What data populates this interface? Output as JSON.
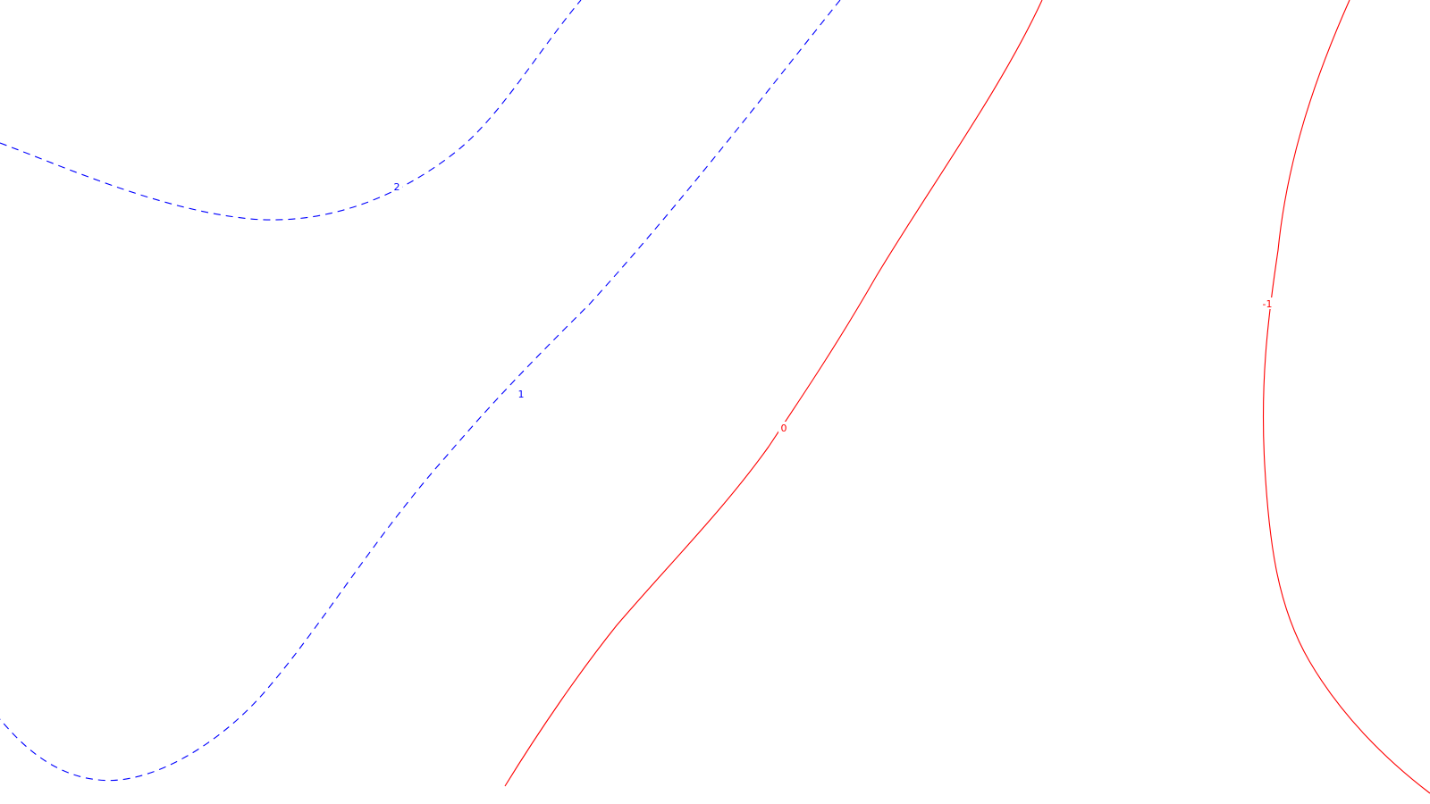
{
  "map": {
    "background": "#ffffff",
    "contours": [
      {
        "id": "contour-2",
        "label": "2",
        "color": "#0000ff",
        "style": "dashed"
      },
      {
        "id": "contour-1",
        "label": "1",
        "color": "#0000ff",
        "style": "dashed"
      },
      {
        "id": "contour-0",
        "label": "0",
        "color": "#ff0000",
        "style": "solid"
      },
      {
        "id": "contour-neg1",
        "label": "-1",
        "color": "#ff0000",
        "style": "solid"
      }
    ]
  }
}
